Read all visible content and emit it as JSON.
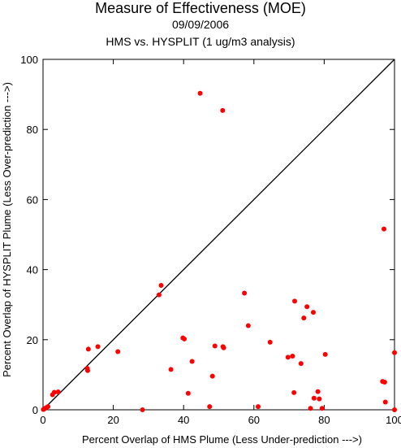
{
  "chart_data": {
    "type": "scatter",
    "title": "Measure of Effectiveness (MOE)",
    "subtitle_date": "09/09/2006",
    "subtitle": "HMS vs. HYSPLIT  (1 ug/m3 analysis)",
    "xlabel": "Percent Overlap of HMS Plume (Less Under-prediction --->)",
    "ylabel": "Percent Overlap of HYSPLIT Plume (Less Over-prediction --->)",
    "xlim": [
      0,
      100
    ],
    "ylim": [
      0,
      100
    ],
    "xticks": [
      0,
      20,
      40,
      60,
      80,
      100
    ],
    "yticks": [
      0,
      20,
      40,
      60,
      80,
      100
    ],
    "reference_line": "1:1 diagonal",
    "point_color": "#ff0000",
    "line_color": "#000000",
    "points": [
      {
        "x": 0.1,
        "y": 0.1
      },
      {
        "x": 0.4,
        "y": 0.3
      },
      {
        "x": 0.9,
        "y": 0.6
      },
      {
        "x": 1.4,
        "y": 0.9
      },
      {
        "x": 2.7,
        "y": 4.3
      },
      {
        "x": 3.2,
        "y": 5.0
      },
      {
        "x": 4.3,
        "y": 5.1
      },
      {
        "x": 12.6,
        "y": 11.8
      },
      {
        "x": 12.7,
        "y": 11.2
      },
      {
        "x": 12.9,
        "y": 17.3
      },
      {
        "x": 15.6,
        "y": 18.0
      },
      {
        "x": 21.3,
        "y": 16.6
      },
      {
        "x": 28.3,
        "y": 0.0
      },
      {
        "x": 33.0,
        "y": 32.8
      },
      {
        "x": 33.6,
        "y": 35.5
      },
      {
        "x": 36.4,
        "y": 11.5
      },
      {
        "x": 39.8,
        "y": 20.5
      },
      {
        "x": 40.2,
        "y": 20.2
      },
      {
        "x": 41.3,
        "y": 4.7
      },
      {
        "x": 42.4,
        "y": 13.8
      },
      {
        "x": 44.7,
        "y": 90.3
      },
      {
        "x": 47.4,
        "y": 0.9
      },
      {
        "x": 48.2,
        "y": 9.6
      },
      {
        "x": 48.9,
        "y": 18.2
      },
      {
        "x": 51.1,
        "y": 85.4
      },
      {
        "x": 51.2,
        "y": 18.0
      },
      {
        "x": 51.4,
        "y": 17.7
      },
      {
        "x": 57.3,
        "y": 33.3
      },
      {
        "x": 58.4,
        "y": 24.0
      },
      {
        "x": 61.2,
        "y": 0.9
      },
      {
        "x": 64.6,
        "y": 19.3
      },
      {
        "x": 69.7,
        "y": 15.0
      },
      {
        "x": 71.0,
        "y": 15.3
      },
      {
        "x": 71.4,
        "y": 4.9
      },
      {
        "x": 71.6,
        "y": 31.0
      },
      {
        "x": 73.4,
        "y": 13.2
      },
      {
        "x": 74.2,
        "y": 26.2
      },
      {
        "x": 75.1,
        "y": 29.4
      },
      {
        "x": 76.1,
        "y": 0.4
      },
      {
        "x": 76.9,
        "y": 27.8
      },
      {
        "x": 77.1,
        "y": 3.3
      },
      {
        "x": 78.2,
        "y": 5.2
      },
      {
        "x": 78.6,
        "y": 3.1
      },
      {
        "x": 79.4,
        "y": 0.4
      },
      {
        "x": 80.3,
        "y": 15.8
      },
      {
        "x": 96.6,
        "y": 8.1
      },
      {
        "x": 97.0,
        "y": 51.6
      },
      {
        "x": 97.2,
        "y": 7.9
      },
      {
        "x": 97.4,
        "y": 2.2
      },
      {
        "x": 100.0,
        "y": 16.3
      },
      {
        "x": 100.0,
        "y": 0.0
      }
    ]
  }
}
